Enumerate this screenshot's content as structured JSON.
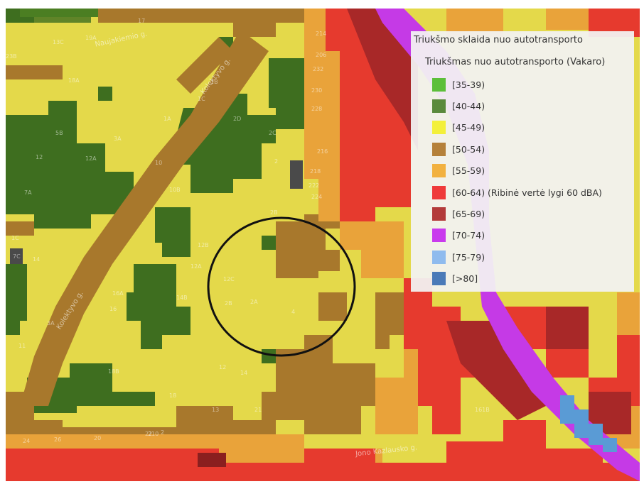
{
  "legend": {
    "title": "Triukšmo sklaida nuo autotransporto",
    "layer": "Triukšmas nuo autotransporto (Vakaro)",
    "items": [
      {
        "label": "[35-39)",
        "color": "#5cbf3a"
      },
      {
        "label": "[40-44)",
        "color": "#5a8a3c"
      },
      {
        "label": "[45-49)",
        "color": "#f3f03a"
      },
      {
        "label": "[50-54)",
        "color": "#b5813a"
      },
      {
        "label": "[55-59)",
        "color": "#f2b13f"
      },
      {
        "label": "[60-64) (Ribinė vertė lygi 60 dBA)",
        "color": "#ef3a3a"
      },
      {
        "label": "[65-69)",
        "color": "#b33a3a"
      },
      {
        "label": "[70-74)",
        "color": "#c93aed"
      },
      {
        "label": "[75-79)",
        "color": "#8fbbee"
      },
      {
        "label": "[>80]",
        "color": "#4a7ab8"
      }
    ]
  },
  "streets": {
    "a": "Naujakiemio g.",
    "b": "Kolektyvo g.",
    "c": "Kolektyvo g.",
    "d": "Jono Kazlausko g."
  },
  "house_numbers": [
    "17",
    "19A",
    "13C",
    "23B",
    "18A",
    "1B",
    "1C",
    "1A",
    "2D",
    "2C",
    "5B",
    "3A",
    "12",
    "12A",
    "10",
    "10B",
    "7A",
    "2",
    "2B",
    "1C",
    "7C",
    "12B",
    "12A",
    "12C",
    "14",
    "14B",
    "16A",
    "16",
    "2A",
    "2B",
    "4",
    "3A",
    "11",
    "18B",
    "18",
    "12",
    "14",
    "13",
    "21",
    "24",
    "22",
    "26",
    "20",
    "2",
    "210",
    "214",
    "216",
    "218",
    "222",
    "224",
    "228",
    "230",
    "232",
    "206",
    "161B"
  ],
  "highlight_circle": true
}
